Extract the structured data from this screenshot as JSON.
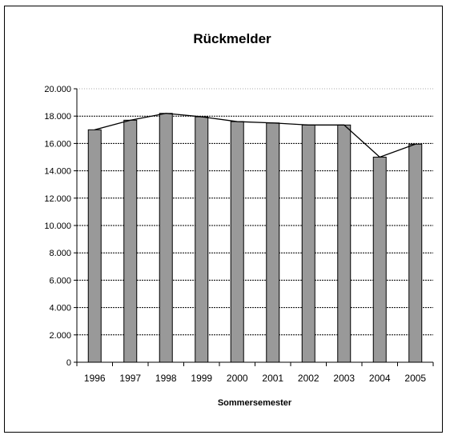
{
  "chart_data": {
    "type": "bar",
    "title": "Rückmelder",
    "xlabel": "Sommersemester",
    "ylabel": "",
    "categories": [
      "1996",
      "1997",
      "1998",
      "1999",
      "2000",
      "2001",
      "2002",
      "2003",
      "2004",
      "2005"
    ],
    "series": [
      {
        "type": "bar",
        "values": [
          17000,
          17700,
          18200,
          17950,
          17600,
          17500,
          17350,
          17350,
          15000,
          15950
        ]
      },
      {
        "type": "line",
        "values": [
          17000,
          17700,
          18200,
          17950,
          17600,
          17500,
          17350,
          17350,
          15000,
          15950
        ]
      }
    ],
    "ylim": [
      0,
      20000
    ],
    "yticks": [
      "0",
      "2.000",
      "4.000",
      "6.000",
      "8.000",
      "10.000",
      "12.000",
      "14.000",
      "16.000",
      "18.000",
      "20.000"
    ],
    "grid": true,
    "legend": "none",
    "colors": {
      "bar_fill": "#999999",
      "bar_stroke": "#000000",
      "line": "#000000",
      "grid": "#000000"
    }
  }
}
